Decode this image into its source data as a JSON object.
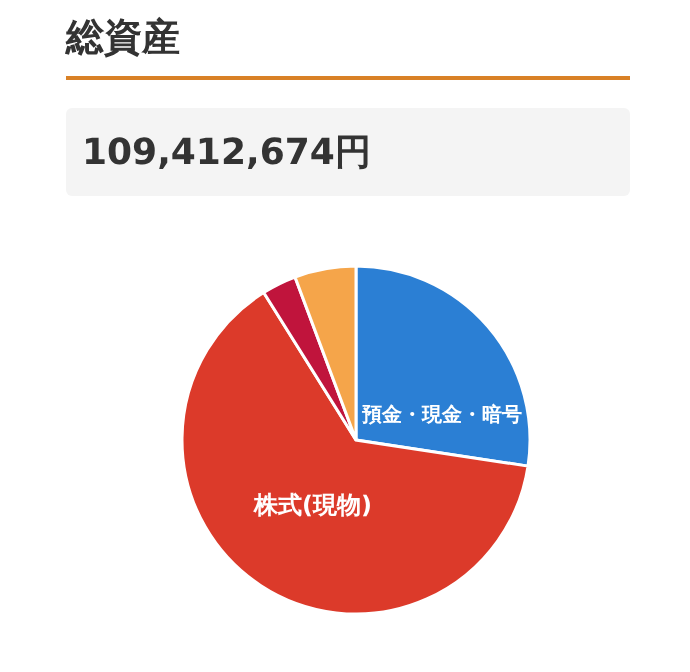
{
  "chart_data": {
    "type": "pie",
    "title": "総資産",
    "annotations": [
      "109,412,674円"
    ],
    "categories": [
      "預金・現金・暗号",
      "株式(現物)",
      null,
      null
    ],
    "values": [
      27.4,
      63.7,
      3.2,
      5.7
    ],
    "colors": [
      "#2b7fd4",
      "#dc3a2a",
      "#c0143c",
      "#f5a54a"
    ],
    "legend": false
  }
}
